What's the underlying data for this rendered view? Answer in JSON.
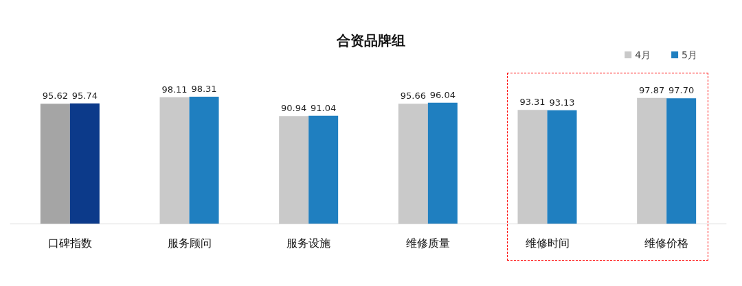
{
  "chart_data": {
    "type": "bar",
    "title": "合资品牌组",
    "categories": [
      "口碑指数",
      "服务顾问",
      "服务设施",
      "维修质量",
      "维修时间",
      "维修价格"
    ],
    "series": [
      {
        "name": "4月",
        "color": "#c9c9c9",
        "colors": [
          "#a5a5a5",
          "#c9c9c9",
          "#c9c9c9",
          "#c9c9c9",
          "#c9c9c9",
          "#c9c9c9"
        ],
        "values": [
          95.62,
          98.11,
          90.94,
          95.66,
          93.31,
          97.87
        ],
        "value_labels": [
          "95.62",
          "98.11",
          "90.94",
          "95.66",
          "93.31",
          "97.87"
        ]
      },
      {
        "name": "5月",
        "color": "#1f7fc0",
        "colors": [
          "#0c3a8a",
          "#1f7fc0",
          "#1f7fc0",
          "#1f7fc0",
          "#1f7fc0",
          "#1f7fc0"
        ],
        "values": [
          95.74,
          98.31,
          91.04,
          96.04,
          93.13,
          97.7
        ],
        "value_labels": [
          "95.74",
          "98.31",
          "91.04",
          "96.04",
          "93.13",
          "97.70"
        ]
      }
    ],
    "ylim": [
      50,
      98.31
    ],
    "legend": "top right",
    "tick_labels": "x"
  }
}
